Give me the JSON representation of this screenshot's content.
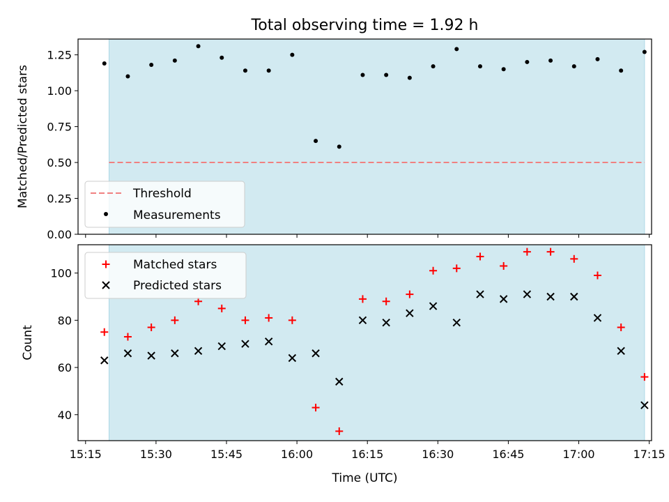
{
  "chart_data": [
    {
      "type": "scatter",
      "title": "Total observing time = 1.92 h",
      "ylabel": "Matched/Predicted stars",
      "xlabel": "",
      "ylim": [
        0,
        1.36
      ],
      "yticks": [
        "0.00",
        "0.25",
        "0.50",
        "0.75",
        "1.00",
        "1.25"
      ],
      "shaded_span": [
        "15:20",
        "17:14"
      ],
      "shade_color": "#add8e6",
      "threshold": {
        "name": "Threshold",
        "value": 0.5,
        "color": "#f08080",
        "style": "dashed"
      },
      "series": [
        {
          "name": "Measurements",
          "color": "#000000",
          "marker": "dot",
          "x": [
            "15:19",
            "15:24",
            "15:29",
            "15:34",
            "15:39",
            "15:44",
            "15:49",
            "15:54",
            "15:59",
            "16:04",
            "16:09",
            "16:14",
            "16:19",
            "16:24",
            "16:29",
            "16:34",
            "16:39",
            "16:44",
            "16:49",
            "16:54",
            "16:59",
            "17:04",
            "17:09",
            "17:14"
          ],
          "y": [
            1.19,
            1.1,
            1.18,
            1.21,
            1.31,
            1.23,
            1.14,
            1.14,
            1.25,
            0.65,
            0.61,
            1.11,
            1.11,
            1.09,
            1.17,
            1.29,
            1.17,
            1.15,
            1.2,
            1.21,
            1.17,
            1.22,
            1.14,
            1.27
          ]
        }
      ],
      "legend": {
        "placement": "lower-left",
        "entries": [
          "Threshold",
          "Measurements"
        ]
      },
      "grid": false
    },
    {
      "type": "scatter",
      "title": "",
      "ylabel": "Count",
      "xlabel": "Time (UTC)",
      "ylim": [
        29,
        112
      ],
      "yticks": [
        "40",
        "60",
        "80",
        "100"
      ],
      "xticks": [
        "15:15",
        "15:30",
        "15:45",
        "16:00",
        "16:15",
        "16:30",
        "16:45",
        "17:00",
        "17:15"
      ],
      "series": [
        {
          "name": "Matched stars",
          "color": "#ff0000",
          "marker": "plus",
          "x": [
            "15:19",
            "15:24",
            "15:29",
            "15:34",
            "15:39",
            "15:44",
            "15:49",
            "15:54",
            "15:59",
            "16:04",
            "16:09",
            "16:14",
            "16:19",
            "16:24",
            "16:29",
            "16:34",
            "16:39",
            "16:44",
            "16:49",
            "16:54",
            "16:59",
            "17:04",
            "17:09",
            "17:14"
          ],
          "y": [
            75,
            73,
            77,
            80,
            88,
            85,
            80,
            81,
            80,
            43,
            33,
            89,
            88,
            91,
            101,
            102,
            107,
            103,
            109,
            109,
            106,
            99,
            77,
            56
          ]
        },
        {
          "name": "Predicted stars",
          "color": "#000000",
          "marker": "x",
          "x": [
            "15:19",
            "15:24",
            "15:29",
            "15:34",
            "15:39",
            "15:44",
            "15:49",
            "15:54",
            "15:59",
            "16:04",
            "16:09",
            "16:14",
            "16:19",
            "16:24",
            "16:29",
            "16:34",
            "16:39",
            "16:44",
            "16:49",
            "16:54",
            "16:59",
            "17:04",
            "17:09",
            "17:14"
          ],
          "y": [
            63,
            66,
            65,
            66,
            67,
            69,
            70,
            71,
            64,
            66,
            54,
            80,
            79,
            83,
            86,
            79,
            91,
            89,
            91,
            90,
            90,
            81,
            67,
            44
          ]
        }
      ],
      "legend": {
        "placement": "upper-left",
        "entries": [
          "Matched stars",
          "Predicted stars"
        ]
      },
      "grid": false
    }
  ]
}
